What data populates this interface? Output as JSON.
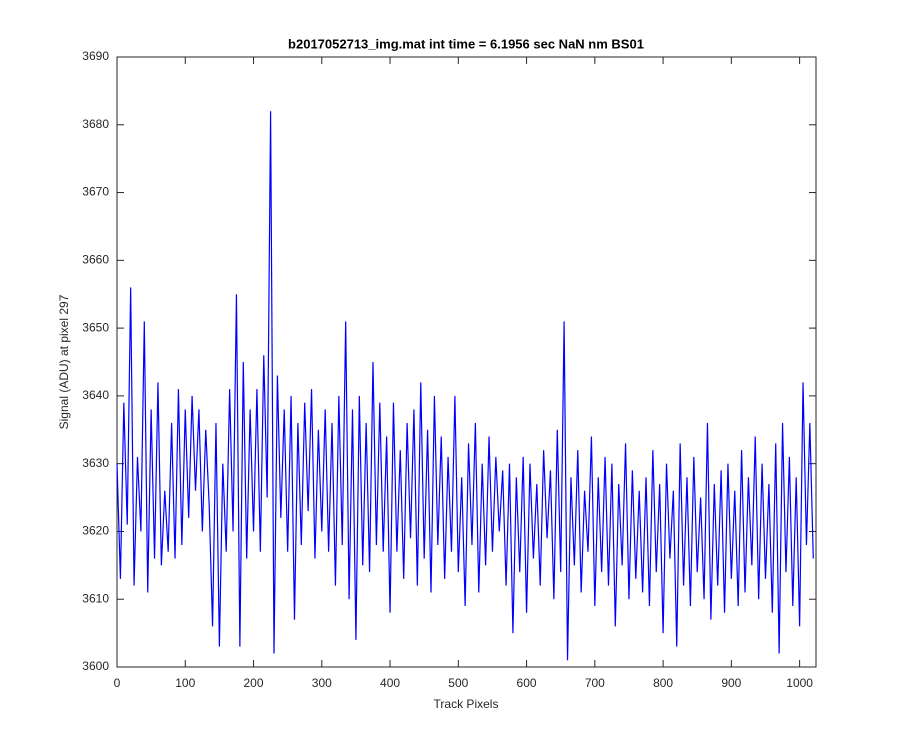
{
  "chart_data": {
    "type": "line",
    "title": "b2017052713_img.mat int time = 6.1956 sec  NaN nm BS01",
    "x_label": "Track Pixels",
    "y_label": "Signal (ADU) at pixel 297",
    "x": [
      0,
      5,
      10,
      15,
      20,
      25,
      30,
      35,
      40,
      45,
      50,
      55,
      60,
      65,
      70,
      75,
      80,
      85,
      90,
      95,
      100,
      105,
      110,
      115,
      120,
      125,
      130,
      135,
      140,
      145,
      150,
      155,
      160,
      165,
      170,
      175,
      180,
      185,
      190,
      195,
      200,
      205,
      210,
      215,
      220,
      225,
      230,
      235,
      240,
      245,
      250,
      255,
      260,
      265,
      270,
      275,
      280,
      285,
      290,
      295,
      300,
      305,
      310,
      315,
      320,
      325,
      330,
      335,
      340,
      345,
      350,
      355,
      360,
      365,
      370,
      375,
      380,
      385,
      390,
      395,
      400,
      405,
      410,
      415,
      420,
      425,
      430,
      435,
      440,
      445,
      450,
      455,
      460,
      465,
      470,
      475,
      480,
      485,
      490,
      495,
      500,
      505,
      510,
      515,
      520,
      525,
      530,
      535,
      540,
      545,
      550,
      555,
      560,
      565,
      570,
      575,
      580,
      585,
      590,
      595,
      600,
      605,
      610,
      615,
      620,
      625,
      630,
      635,
      640,
      645,
      650,
      655,
      660,
      665,
      670,
      675,
      680,
      685,
      690,
      695,
      700,
      705,
      710,
      715,
      720,
      725,
      730,
      735,
      740,
      745,
      750,
      755,
      760,
      765,
      770,
      775,
      780,
      785,
      790,
      795,
      800,
      805,
      810,
      815,
      820,
      825,
      830,
      835,
      840,
      845,
      850,
      855,
      860,
      865,
      870,
      875,
      880,
      885,
      890,
      895,
      900,
      905,
      910,
      915,
      920,
      925,
      930,
      935,
      940,
      945,
      950,
      955,
      960,
      965,
      970,
      975,
      980,
      985,
      990,
      995,
      1000,
      1005,
      1010,
      1015,
      1020
    ],
    "series": [
      {
        "color": "#0000ff",
        "values": [
          3630,
          3613,
          3639,
          3621,
          3656,
          3612,
          3631,
          3620,
          3651,
          3611,
          3638,
          3616,
          3642,
          3615,
          3626,
          3617,
          3636,
          3616,
          3641,
          3618,
          3638,
          3622,
          3640,
          3626,
          3638,
          3620,
          3635,
          3624,
          3606,
          3636,
          3603,
          3630,
          3617,
          3641,
          3620,
          3655,
          3603,
          3645,
          3616,
          3638,
          3620,
          3641,
          3617,
          3646,
          3625,
          3682,
          3602,
          3643,
          3622,
          3638,
          3617,
          3640,
          3607,
          3636,
          3618,
          3639,
          3623,
          3641,
          3616,
          3635,
          3620,
          3638,
          3617,
          3636,
          3612,
          3640,
          3618,
          3651,
          3610,
          3638,
          3604,
          3640,
          3615,
          3636,
          3614,
          3645,
          3618,
          3639,
          3617,
          3634,
          3608,
          3639,
          3617,
          3632,
          3613,
          3636,
          3619,
          3638,
          3612,
          3642,
          3616,
          3635,
          3611,
          3640,
          3618,
          3634,
          3613,
          3631,
          3617,
          3640,
          3614,
          3628,
          3609,
          3633,
          3618,
          3636,
          3611,
          3630,
          3615,
          3634,
          3617,
          3631,
          3620,
          3629,
          3612,
          3630,
          3605,
          3628,
          3614,
          3631,
          3608,
          3630,
          3616,
          3627,
          3612,
          3632,
          3619,
          3629,
          3610,
          3635,
          3614,
          3651,
          3601,
          3628,
          3615,
          3632,
          3611,
          3626,
          3617,
          3634,
          3609,
          3628,
          3614,
          3631,
          3612,
          3630,
          3606,
          3627,
          3615,
          3633,
          3610,
          3629,
          3613,
          3626,
          3611,
          3628,
          3609,
          3632,
          3614,
          3627,
          3605,
          3630,
          3616,
          3626,
          3603,
          3633,
          3612,
          3628,
          3609,
          3631,
          3614,
          3625,
          3610,
          3636,
          3607,
          3627,
          3612,
          3629,
          3608,
          3630,
          3613,
          3626,
          3609,
          3632,
          3611,
          3628,
          3615,
          3634,
          3610,
          3630,
          3613,
          3627,
          3608,
          3633,
          3602,
          3636,
          3614,
          3631,
          3609,
          3628,
          3606,
          3642,
          3618,
          3636,
          3616
        ]
      }
    ],
    "xlim": [
      0,
      1024
    ],
    "ylim": [
      3600,
      3690
    ],
    "xticks": [
      0,
      100,
      200,
      300,
      400,
      500,
      600,
      700,
      800,
      900,
      1000
    ],
    "yticks": [
      3600,
      3610,
      3620,
      3630,
      3640,
      3650,
      3660,
      3670,
      3680,
      3690
    ]
  }
}
